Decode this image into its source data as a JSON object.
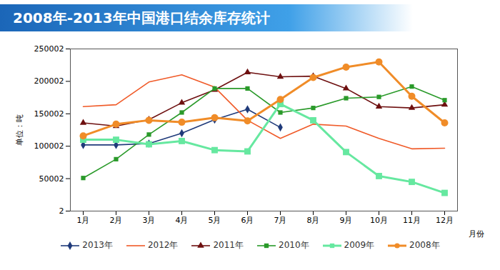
{
  "chart_data": {
    "type": "line",
    "title": "2008年-2013年中国港口结余库存统计",
    "x_label": "月份",
    "y_label": "单位：吨",
    "categories": [
      "1月",
      "2月",
      "3月",
      "4月",
      "5月",
      "6月",
      "7月",
      "8月",
      "9月",
      "10月",
      "11月",
      "12月"
    ],
    "ylim": [
      2,
      250002
    ],
    "yticks": [
      2,
      50002,
      100002,
      150002,
      200002,
      250002
    ],
    "grid": false,
    "legend": "bottom",
    "series": [
      {
        "name": "2013年",
        "color": "#1f3a7a",
        "marker": "diamond",
        "values": [
          102000,
          102000,
          104000,
          120000,
          141000,
          157000,
          129000,
          null,
          null,
          null,
          null,
          null
        ]
      },
      {
        "name": "2012年",
        "color": "#f05a28",
        "marker": "none",
        "values": [
          161000,
          164000,
          199000,
          210000,
          191000,
          140000,
          112000,
          134000,
          131000,
          112000,
          96000,
          97000
        ]
      },
      {
        "name": "2011年",
        "color": "#6e1010",
        "marker": "triangle",
        "values": [
          136000,
          131000,
          141000,
          167000,
          187000,
          214000,
          207000,
          208000,
          189000,
          161000,
          159000,
          164000
        ]
      },
      {
        "name": "2010年",
        "color": "#2a9a2a",
        "marker": "square",
        "values": [
          51000,
          80000,
          118000,
          152000,
          189000,
          189000,
          152000,
          159000,
          174000,
          176000,
          192000,
          171000
        ]
      },
      {
        "name": "2009年",
        "color": "#66e8a0",
        "marker": "square",
        "values": [
          110000,
          110000,
          103000,
          108000,
          94000,
          92000,
          165000,
          140000,
          91000,
          54000,
          45000,
          28000
        ]
      },
      {
        "name": "2008年",
        "color": "#f08c28",
        "marker": "circle",
        "values": [
          116000,
          134000,
          140000,
          137000,
          144000,
          139000,
          172000,
          206000,
          222000,
          230000,
          177000,
          136000
        ]
      }
    ]
  }
}
